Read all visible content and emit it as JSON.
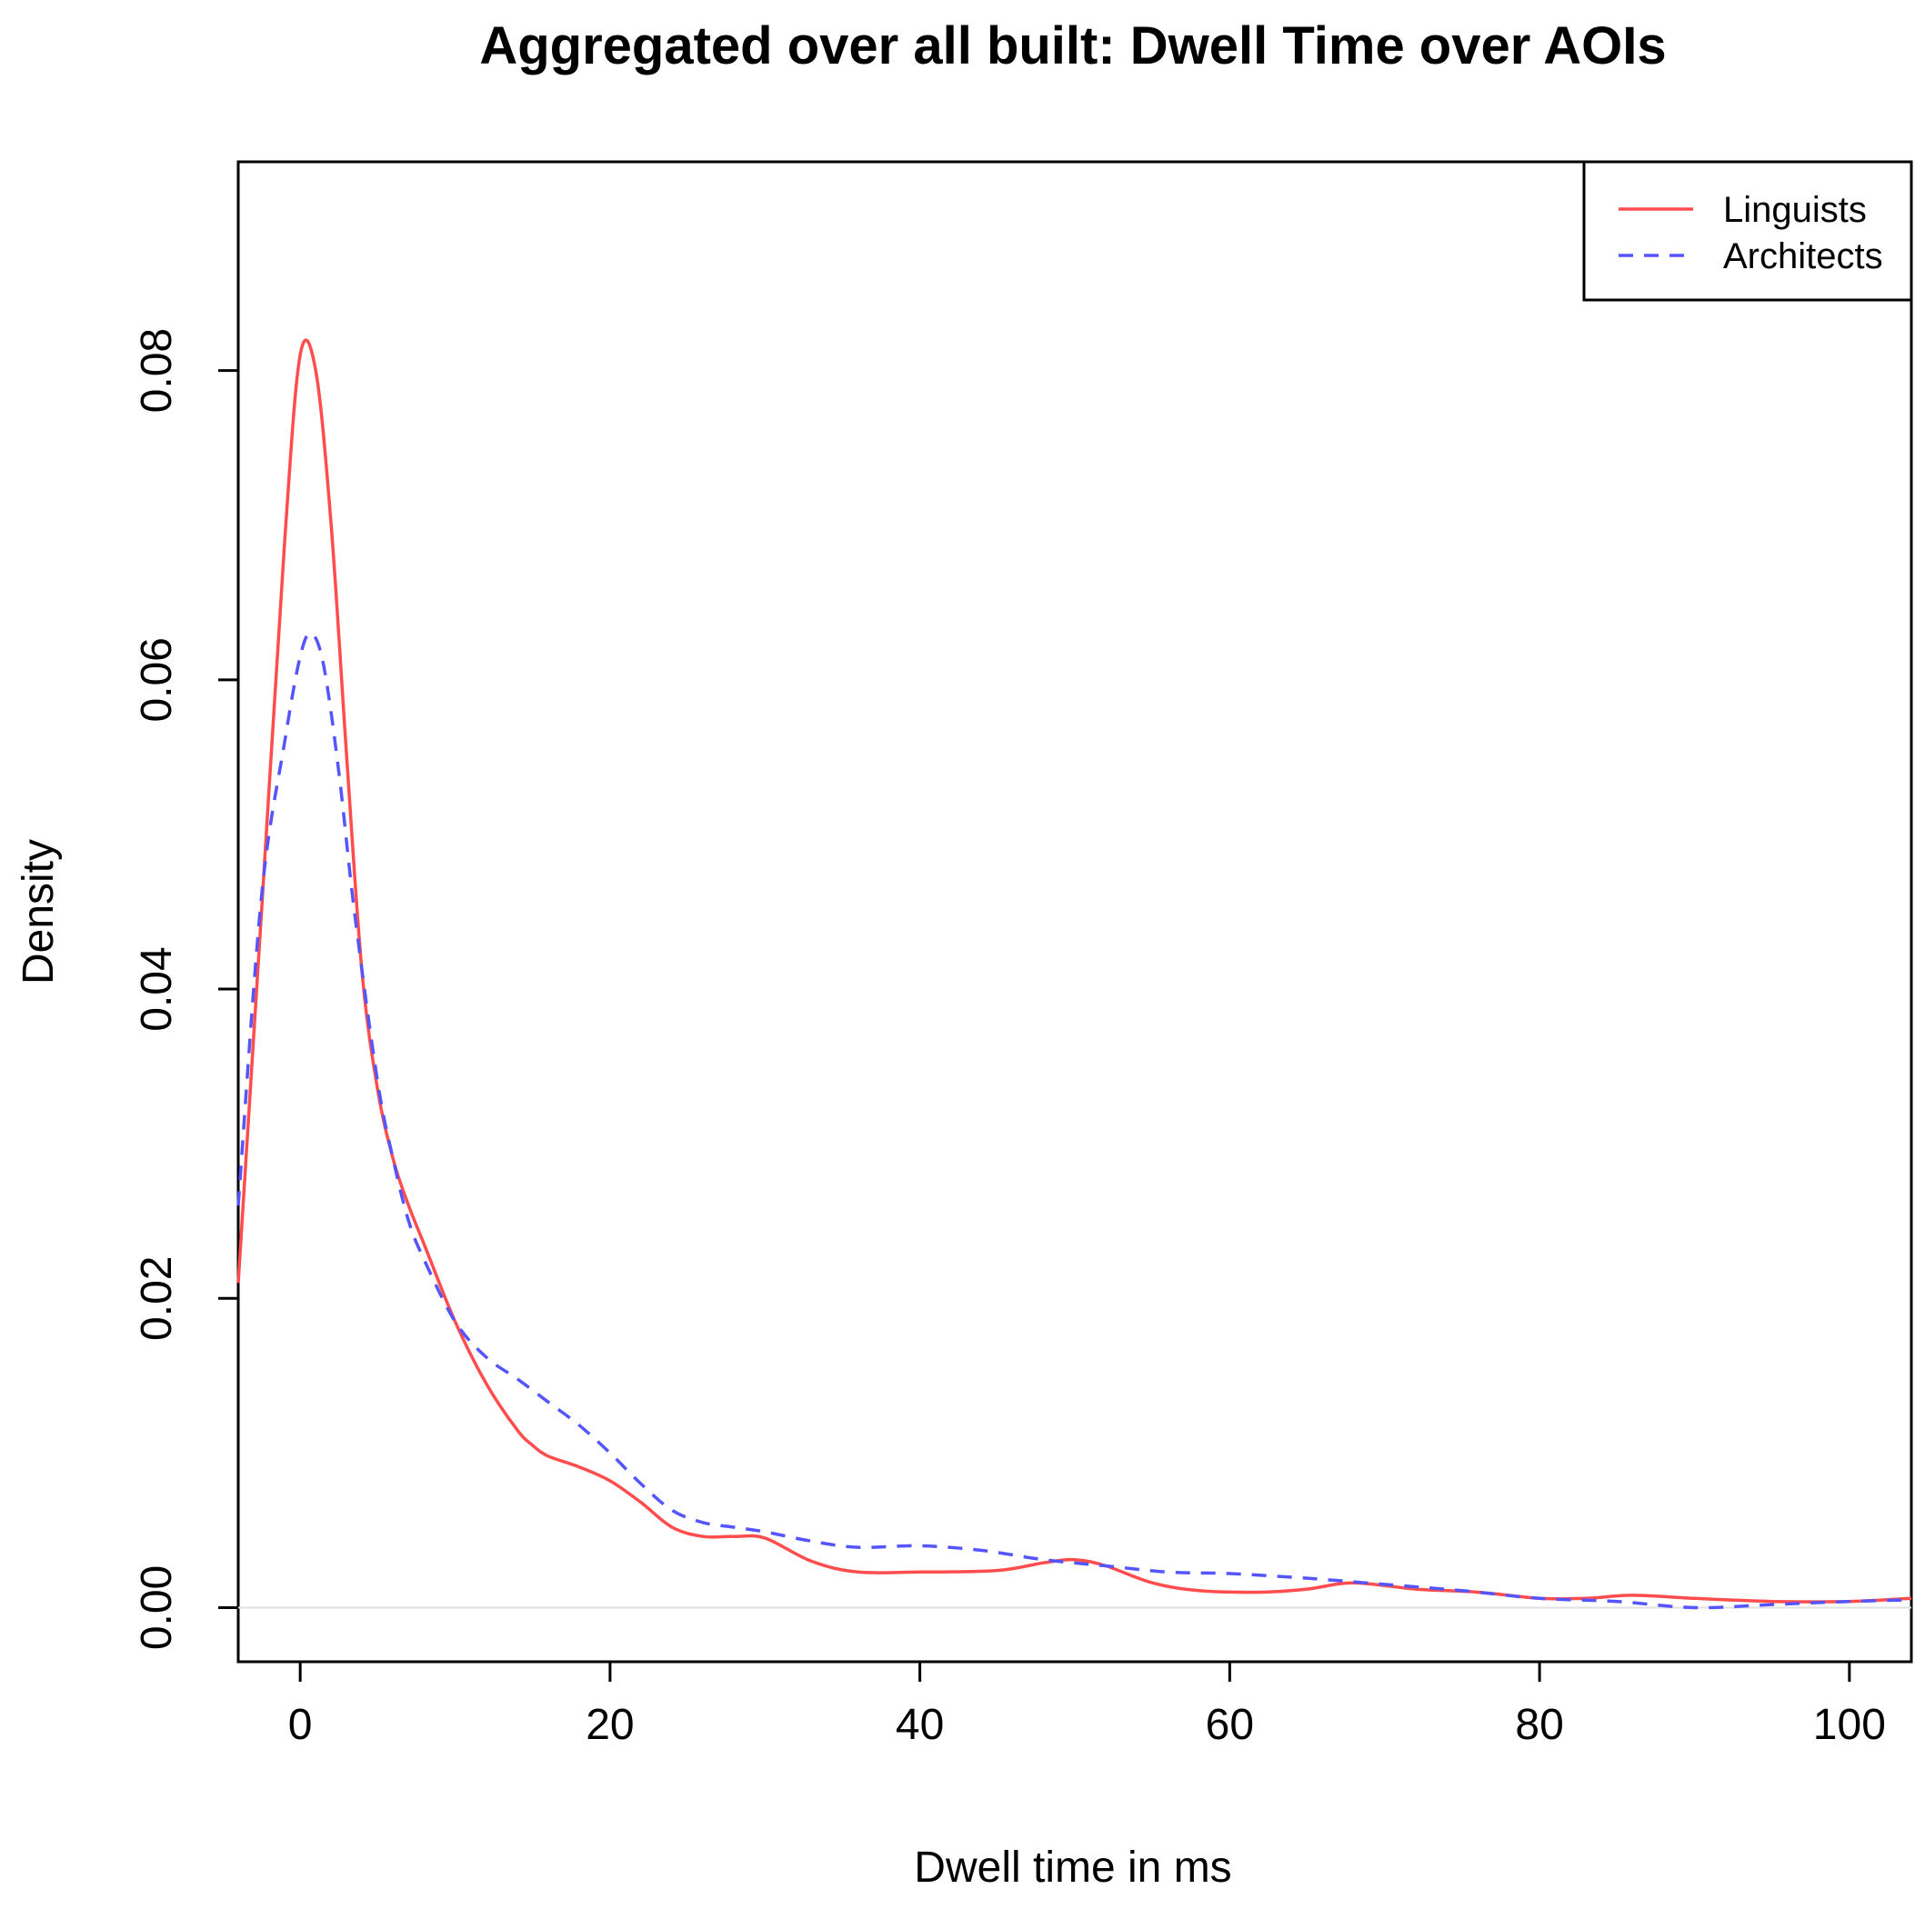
{
  "chart_data": {
    "type": "line",
    "title": "Aggregated over all built: Dwell Time over AOIs",
    "xlabel": "Dwell time in ms",
    "ylabel": "Density",
    "xlim": [
      -4,
      104
    ],
    "ylim": [
      -0.0035,
      0.0935
    ],
    "xticks": [
      0,
      20,
      40,
      60,
      80,
      100
    ],
    "yticks": [
      0.0,
      0.02,
      0.04,
      0.06,
      0.08
    ],
    "xtick_labels": [
      "0",
      "20",
      "40",
      "60",
      "80",
      "100"
    ],
    "ytick_labels": [
      "0.00",
      "0.02",
      "0.04",
      "0.06",
      "0.08"
    ],
    "zero_line": true,
    "grid": false,
    "legend_position": "top-right",
    "series": [
      {
        "name": "Linguists",
        "color": "#ff4d4d",
        "dash": "solid",
        "x": [
          -4,
          -2.5,
          -1,
          0,
          1,
          2,
          3,
          4,
          5,
          6,
          7,
          8,
          10,
          12,
          14,
          15,
          16,
          18,
          20,
          22,
          24,
          26,
          28,
          30,
          33,
          36,
          40,
          45,
          48,
          50,
          52,
          55,
          58,
          62,
          65,
          68,
          72,
          76,
          80,
          83,
          86,
          90,
          95,
          100,
          104
        ],
        "y": [
          0.021,
          0.045,
          0.069,
          0.081,
          0.08,
          0.07,
          0.055,
          0.041,
          0.0335,
          0.029,
          0.026,
          0.0235,
          0.0185,
          0.0145,
          0.0115,
          0.0105,
          0.0098,
          0.0091,
          0.0082,
          0.0068,
          0.0052,
          0.0046,
          0.0046,
          0.0045,
          0.003,
          0.0023,
          0.0023,
          0.0024,
          0.0029,
          0.0031,
          0.0027,
          0.0016,
          0.0011,
          0.001,
          0.0012,
          0.0016,
          0.0012,
          0.001,
          0.0006,
          0.0006,
          0.0008,
          0.0006,
          0.0004,
          0.0004,
          0.0006
        ]
      },
      {
        "name": "Architects",
        "color": "#5555ff",
        "dash": "dashed",
        "x": [
          -4,
          -2.5,
          -1,
          0,
          0.7,
          1.5,
          2.5,
          3.5,
          5,
          6,
          7,
          8,
          10,
          12,
          14,
          16,
          18,
          20,
          22,
          24,
          26,
          28,
          30,
          33,
          36,
          40,
          44,
          48,
          52,
          56,
          60,
          65,
          70,
          75,
          80,
          85,
          90,
          95,
          100,
          104
        ],
        "y": [
          0.026,
          0.046,
          0.056,
          0.0615,
          0.063,
          0.061,
          0.054,
          0.045,
          0.034,
          0.029,
          0.025,
          0.0225,
          0.0185,
          0.0162,
          0.0148,
          0.0133,
          0.0118,
          0.01,
          0.008,
          0.0063,
          0.0055,
          0.0052,
          0.0049,
          0.0043,
          0.0039,
          0.004,
          0.0037,
          0.0031,
          0.0027,
          0.0023,
          0.0022,
          0.0019,
          0.0015,
          0.0011,
          0.0006,
          0.0004,
          0.0,
          0.0002,
          0.0004,
          0.0005
        ]
      }
    ]
  }
}
